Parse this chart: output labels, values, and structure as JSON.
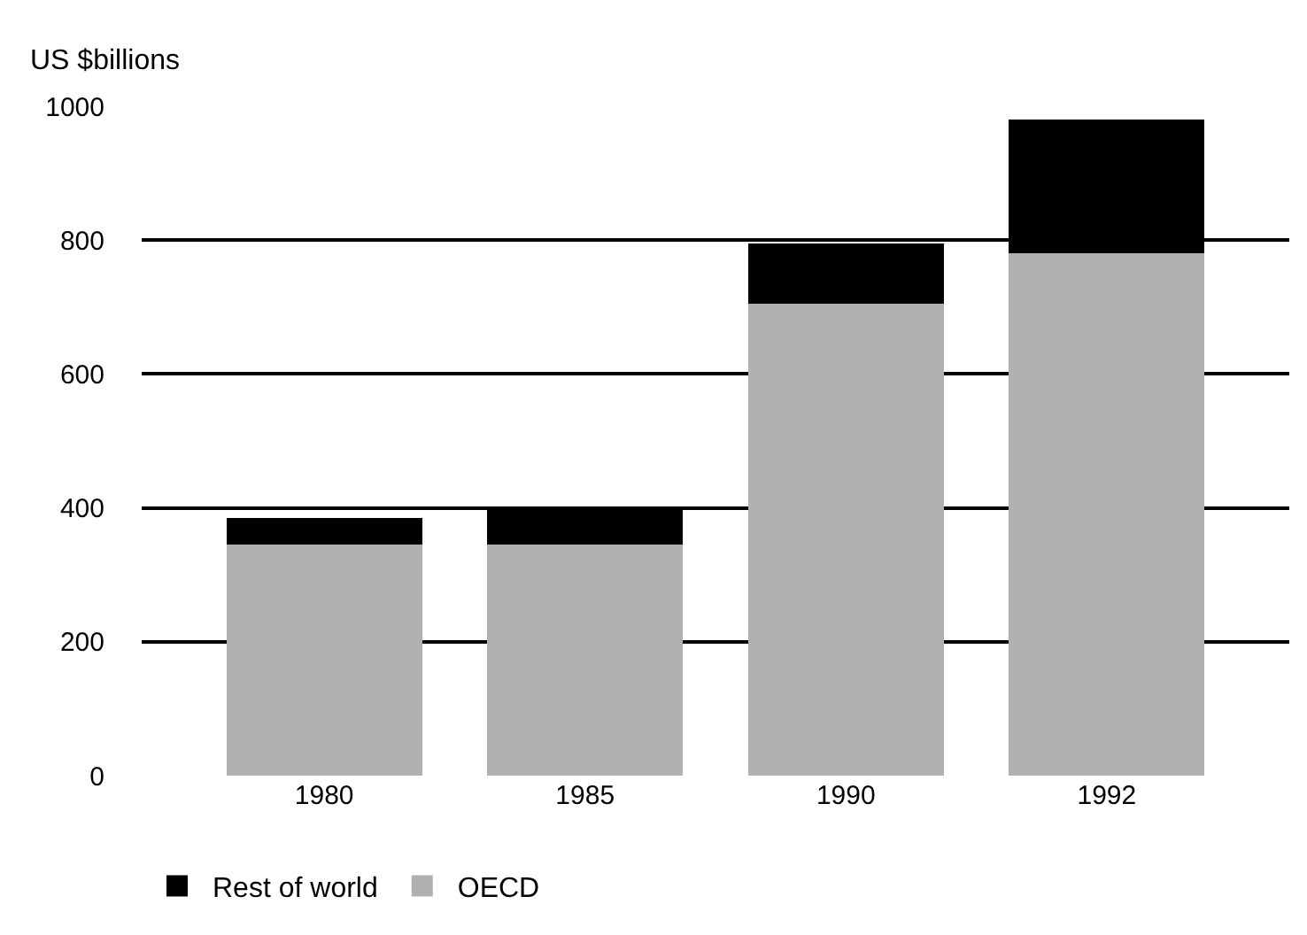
{
  "chart_data": {
    "type": "bar",
    "stacked": true,
    "ylabel": "US $billions",
    "categories": [
      "1980",
      "1985",
      "1990",
      "1992"
    ],
    "series": [
      {
        "name": "OECD",
        "color": "#b0b0b0",
        "values": [
          345,
          345,
          705,
          780
        ]
      },
      {
        "name": "Rest of world",
        "color": "#000000",
        "values": [
          40,
          55,
          90,
          200
        ]
      }
    ],
    "ylim": [
      0,
      1000
    ],
    "yticks": [
      0,
      200,
      400,
      600,
      800,
      1000
    ],
    "grid": "y",
    "legend": "bottom"
  }
}
